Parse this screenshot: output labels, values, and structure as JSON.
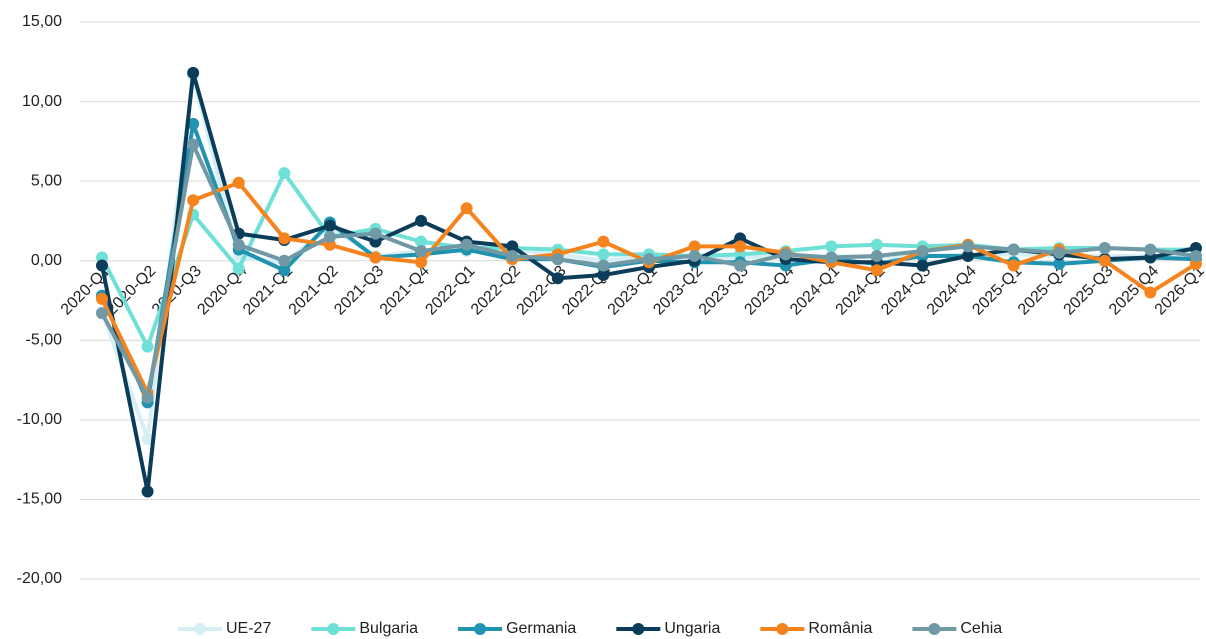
{
  "chart_data": {
    "type": "line",
    "categories": [
      "2020-Q1",
      "2020-Q2",
      "2020-Q3",
      "2020-Q4",
      "2021-Q1",
      "2021-Q2",
      "2021-Q3",
      "2021-Q4",
      "2022-Q1",
      "2022-Q2",
      "2022-Q3",
      "2022-Q4",
      "2023-Q1",
      "2023-Q2",
      "2023-Q3",
      "2023-Q4",
      "2024-Q1",
      "2024-Q2",
      "2024-Q3",
      "2024-Q4",
      "2025-Q1",
      "2025-Q2",
      "2025-Q3",
      "2025-Q4",
      "2026-Q1"
    ],
    "series": [
      {
        "name": "UE-27",
        "color": "#d6eff4",
        "values": [
          -3.2,
          -11.2,
          11.6,
          0.2,
          -0.1,
          2.1,
          0.3,
          0.6,
          0.6,
          0.7,
          0.4,
          0.0,
          0.2,
          0.2,
          0.2,
          0.3,
          0.3,
          0.2,
          0.3,
          0.4,
          0.4,
          0.3,
          0.3,
          0.3,
          0.3
        ]
      },
      {
        "name": "Bulgaria",
        "color": "#6ee0d6",
        "values": [
          0.2,
          -5.4,
          2.9,
          -0.5,
          5.5,
          1.5,
          2.0,
          1.2,
          0.8,
          0.8,
          0.7,
          0.4,
          0.4,
          0.3,
          0.4,
          0.6,
          0.9,
          1.0,
          0.9,
          1.0,
          0.7,
          0.8,
          0.8,
          0.7,
          0.7
        ]
      },
      {
        "name": "Germania",
        "color": "#1f93b0",
        "values": [
          -2.2,
          -8.9,
          8.6,
          0.7,
          -0.6,
          2.4,
          0.2,
          0.4,
          0.7,
          0.1,
          0.1,
          -0.4,
          0.0,
          -0.1,
          -0.1,
          -0.3,
          0.1,
          -0.2,
          0.3,
          0.3,
          -0.1,
          -0.2,
          0.0,
          0.2,
          0.1
        ]
      },
      {
        "name": "Ungaria",
        "color": "#0b3d5a",
        "values": [
          -0.3,
          -14.5,
          11.8,
          1.7,
          1.3,
          2.2,
          1.2,
          2.5,
          1.2,
          0.9,
          -1.1,
          -0.9,
          -0.4,
          0.0,
          1.4,
          0.1,
          -0.1,
          -0.1,
          -0.3,
          0.3,
          0.7,
          0.4,
          0.1,
          0.2,
          0.8
        ]
      },
      {
        "name": "România",
        "color": "#f5841f",
        "values": [
          -2.4,
          -8.3,
          3.8,
          4.9,
          1.4,
          1.0,
          0.2,
          -0.1,
          3.3,
          0.1,
          0.4,
          1.2,
          -0.1,
          0.9,
          0.9,
          0.5,
          -0.1,
          -0.6,
          0.6,
          1.0,
          -0.3,
          0.7,
          0.0,
          -2.0,
          -0.2
        ]
      },
      {
        "name": "Cehia",
        "color": "#7099a5",
        "values": [
          -3.3,
          -8.6,
          7.3,
          1.0,
          0.0,
          1.5,
          1.7,
          0.6,
          1.0,
          0.3,
          0.1,
          -0.3,
          0.1,
          0.3,
          -0.3,
          0.4,
          0.2,
          0.3,
          0.6,
          0.9,
          0.7,
          0.5,
          0.8,
          0.7,
          0.3
        ]
      }
    ],
    "ylim": [
      -20,
      15
    ],
    "yticks": [
      {
        "value": -20,
        "label": "-20,00"
      },
      {
        "value": -15,
        "label": "-15,00"
      },
      {
        "value": -10,
        "label": "-10,00"
      },
      {
        "value": -5,
        "label": "-5,00"
      },
      {
        "value": 0,
        "label": "0,00"
      },
      {
        "value": 5,
        "label": "5,00"
      },
      {
        "value": 10,
        "label": "10,00"
      },
      {
        "value": 15,
        "label": "15,00"
      }
    ],
    "grid": true,
    "legend": "bottom"
  }
}
